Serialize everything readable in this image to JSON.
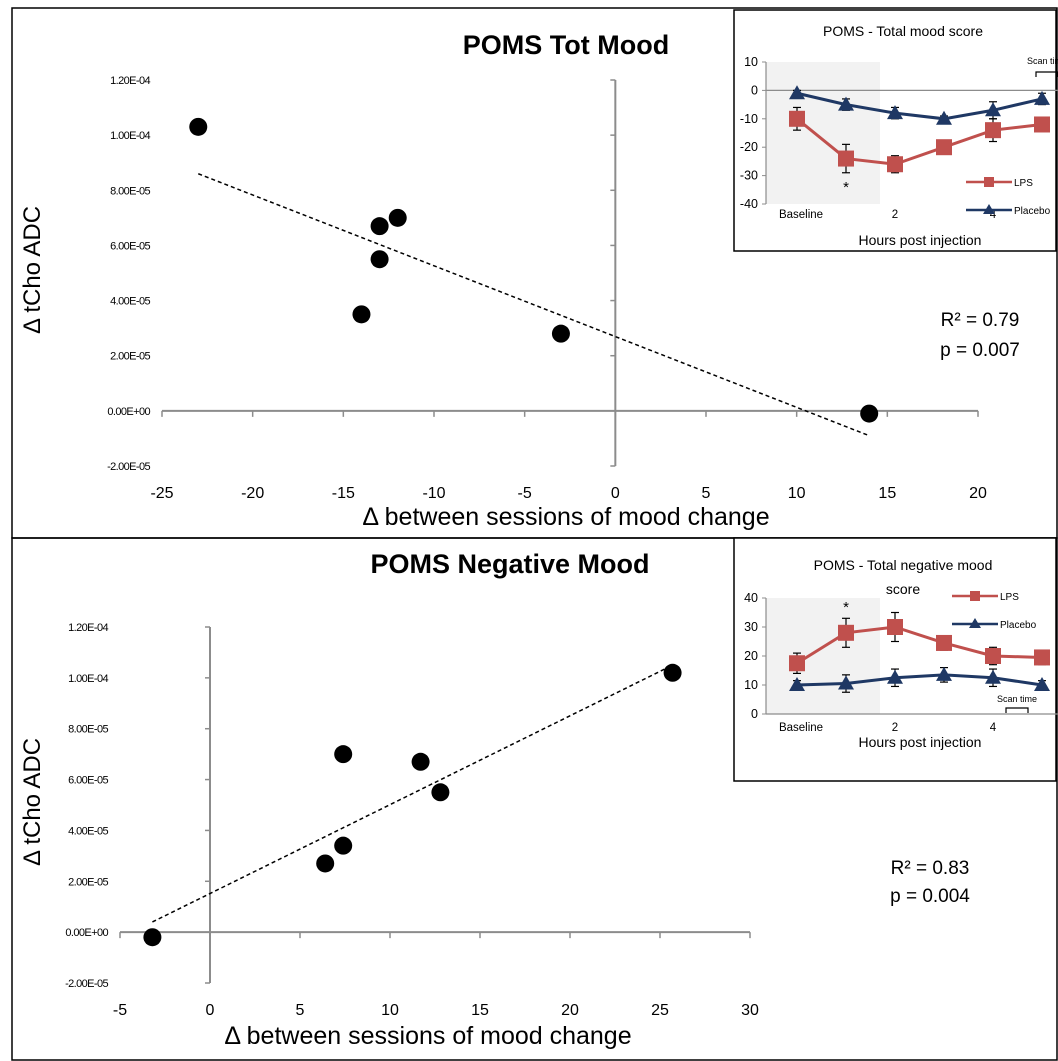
{
  "chart_data": [
    {
      "type": "scatter",
      "title": "POMS Tot Mood",
      "xlabel": "Δ between sessions of mood change",
      "ylabel": "Δ tCho ADC",
      "xlim": [
        -25,
        20
      ],
      "ylim": [
        -2e-05,
        0.00012
      ],
      "x_ticks": [
        "-25",
        "-20",
        "-15",
        "-10",
        "-5",
        "0",
        "5",
        "10",
        "15",
        "20"
      ],
      "y_ticks": [
        "-2.00E-05",
        "0.00E+00",
        "2.00E-05",
        "4.00E-05",
        "6.00E-05",
        "8.00E-05",
        "1.00E-04",
        "1.20E-04"
      ],
      "points": [
        {
          "x": -23,
          "y": 0.000103
        },
        {
          "x": -13,
          "y": 6.7e-05
        },
        {
          "x": -12,
          "y": 7e-05
        },
        {
          "x": -13,
          "y": 5.5e-05
        },
        {
          "x": -14,
          "y": 3.5e-05
        },
        {
          "x": -3,
          "y": 2.8e-05
        },
        {
          "x": 14,
          "y": -1e-06
        }
      ],
      "trendline": {
        "x": [
          -23,
          14
        ],
        "y": [
          8.6e-05,
          -9e-06
        ]
      },
      "stats": {
        "r2": "R² = 0.79",
        "p": "p = 0.007"
      },
      "inset": {
        "type": "line",
        "title": "POMS - Total mood score",
        "xlabel": "Hours post injection",
        "x_ticks": [
          "Baseline",
          "2",
          "4"
        ],
        "y_ticks": [
          "10",
          "0",
          "-10",
          "-20",
          "-30",
          "-40"
        ],
        "ylim": [
          -40,
          10
        ],
        "x": [
          0,
          1,
          2,
          3,
          4,
          5
        ],
        "series": [
          {
            "name": "LPS",
            "color": "#c0504d",
            "values": [
              -10,
              -24,
              -26,
              -20,
              -14,
              -12
            ],
            "errors": [
              4,
              5,
              3,
              1,
              4,
              2
            ]
          },
          {
            "name": "Placebo",
            "color": "#1f3864",
            "values": [
              -1,
              -5,
              -8,
              -10,
              -7,
              -3
            ],
            "errors": [
              1,
              2,
              2,
              1,
              3,
              2
            ]
          }
        ],
        "annotation_star": "*",
        "scan_time_label": "Scan time"
      }
    },
    {
      "type": "scatter",
      "title": "POMS Negative Mood",
      "xlabel": "Δ between sessions of mood change",
      "ylabel": "Δ tCho ADC",
      "xlim": [
        -5,
        30
      ],
      "ylim": [
        -2e-05,
        0.00012
      ],
      "x_ticks": [
        "-5",
        "0",
        "5",
        "10",
        "15",
        "20",
        "25",
        "30"
      ],
      "y_ticks": [
        "-2.00E-05",
        "0.00E+00",
        "2.00E-05",
        "4.00E-05",
        "6.00E-05",
        "8.00E-05",
        "1.00E-04",
        "1.20E-04"
      ],
      "points": [
        {
          "x": -3.2,
          "y": -2e-06
        },
        {
          "x": 6.4,
          "y": 2.7e-05
        },
        {
          "x": 7.4,
          "y": 3.4e-05
        },
        {
          "x": 7.4,
          "y": 7e-05
        },
        {
          "x": 11.7,
          "y": 6.7e-05
        },
        {
          "x": 12.8,
          "y": 5.5e-05
        },
        {
          "x": 25.7,
          "y": 0.000102
        }
      ],
      "trendline": {
        "x": [
          -3.2,
          25.7
        ],
        "y": [
          4e-06,
          0.000105
        ]
      },
      "stats": {
        "r2": "R² = 0.83",
        "p": "p = 0.004"
      },
      "inset": {
        "type": "line",
        "title": "POMS - Total negative mood score",
        "title_lines": [
          "POMS - Total negative mood",
          "score"
        ],
        "xlabel": "Hours post injection",
        "x_ticks": [
          "Baseline",
          "2",
          "4"
        ],
        "y_ticks": [
          "40",
          "30",
          "20",
          "10",
          "0"
        ],
        "ylim": [
          0,
          40
        ],
        "x": [
          0,
          1,
          2,
          3,
          4,
          5
        ],
        "series": [
          {
            "name": "LPS",
            "color": "#c0504d",
            "values": [
              17.5,
              28,
              30,
              24.5,
              20,
              19.5
            ],
            "errors": [
              3.5,
              5,
              5,
              2.5,
              3,
              2.5
            ]
          },
          {
            "name": "Placebo",
            "color": "#1f3864",
            "values": [
              10,
              10.5,
              12.5,
              13.5,
              12.5,
              10
            ],
            "errors": [
              1.5,
              3,
              3,
              2.5,
              3,
              1.5
            ]
          }
        ],
        "annotation_star": "*",
        "scan_time_label": "Scan time"
      }
    }
  ]
}
